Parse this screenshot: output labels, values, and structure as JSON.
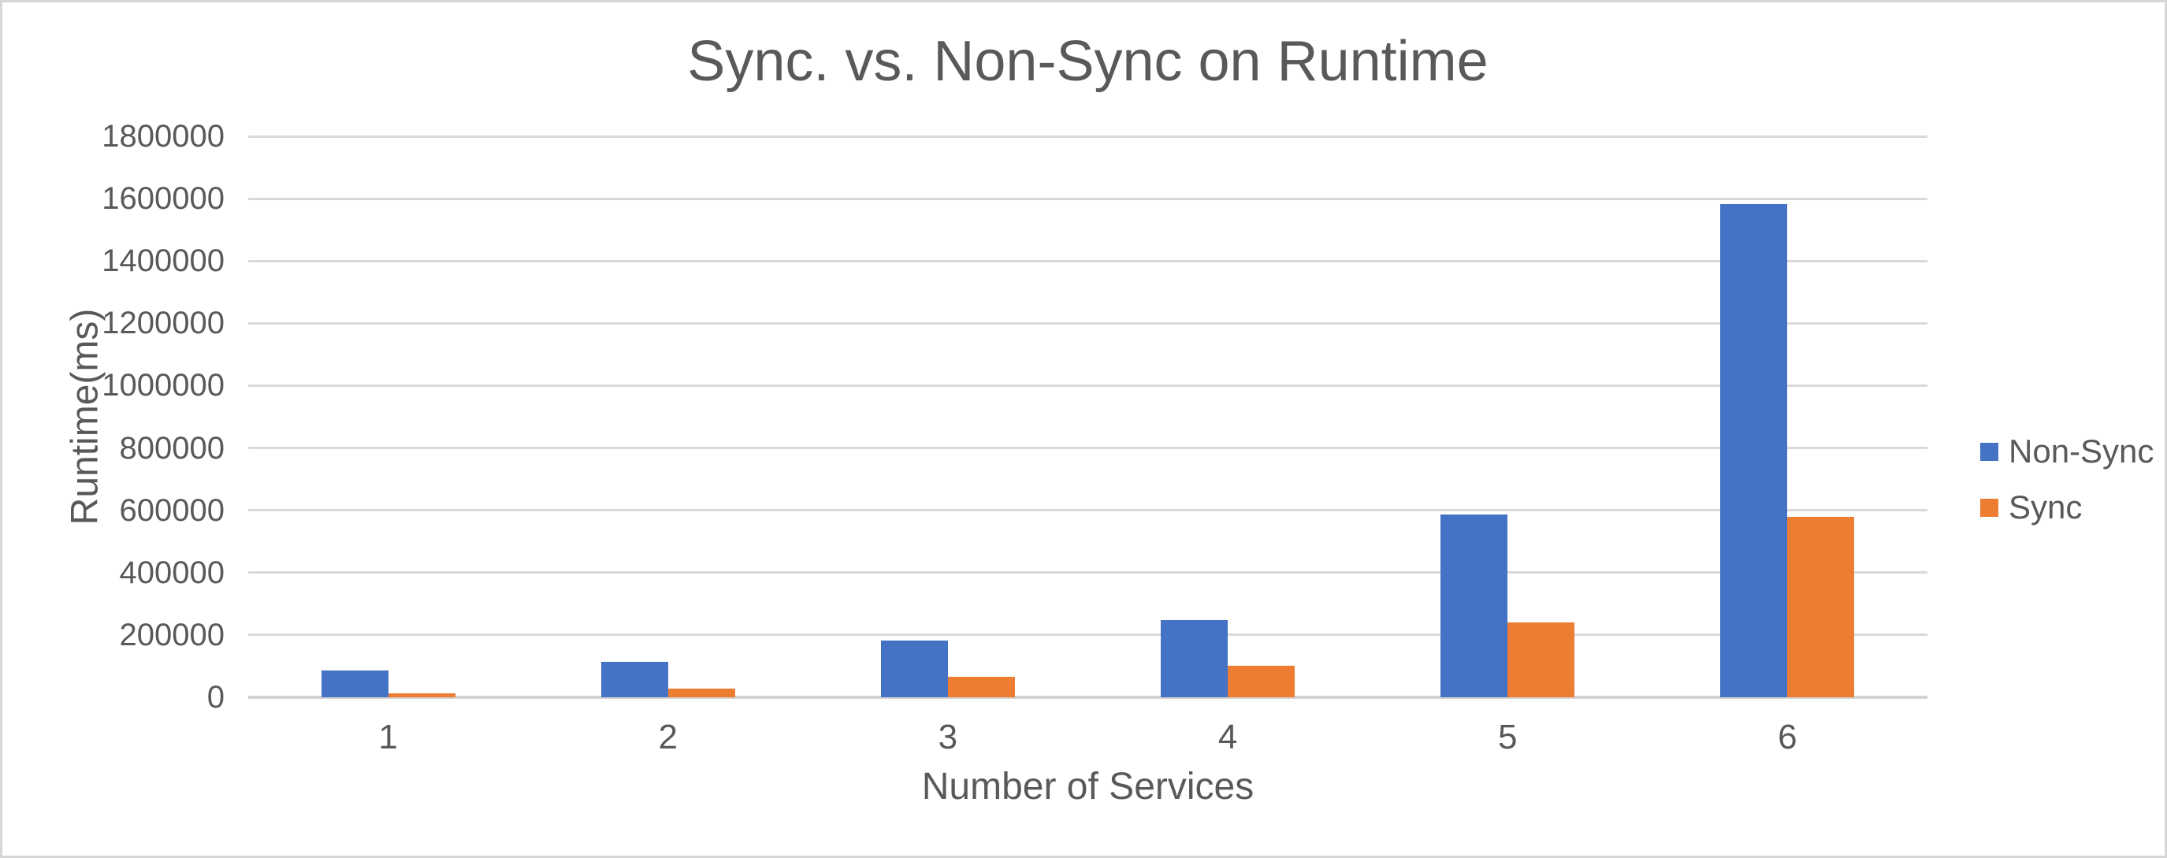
{
  "chart_data": {
    "type": "bar",
    "title": "Sync. vs. Non-Sync on Runtime",
    "xlabel": "Number of Services",
    "ylabel": "Runtime(ms)",
    "categories": [
      "1",
      "2",
      "3",
      "4",
      "5",
      "6"
    ],
    "series": [
      {
        "name": "Non-Sync",
        "color": "#4472C4",
        "values": [
          86000,
          115000,
          181000,
          249000,
          587000,
          1583000
        ]
      },
      {
        "name": "Sync",
        "color": "#ED7D31",
        "values": [
          13000,
          28000,
          65000,
          100000,
          239000,
          580000
        ]
      }
    ],
    "ylim": [
      0,
      1800000
    ],
    "ytick_interval": 200000,
    "ytick_labels": [
      "0",
      "200000",
      "400000",
      "600000",
      "800000",
      "1000000",
      "1200000",
      "1400000",
      "1600000",
      "1800000"
    ],
    "grid": true,
    "legend_position": "right",
    "colors": {
      "gridline": "#d9d9d9",
      "axis_line": "#d2d2d2",
      "text": "#595959",
      "frame_border": "#d6d6d6",
      "background": "#ffffff"
    }
  }
}
